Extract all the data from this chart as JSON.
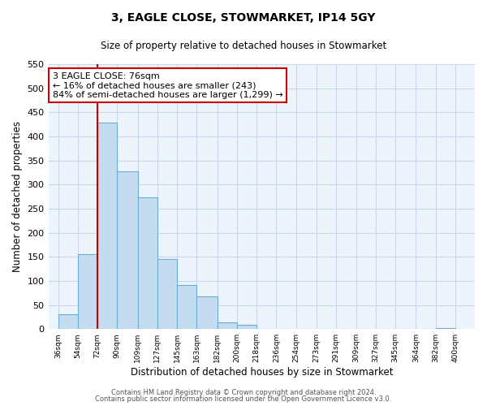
{
  "title": "3, EAGLE CLOSE, STOWMARKET, IP14 5GY",
  "subtitle": "Size of property relative to detached houses in Stowmarket",
  "xlabel": "Distribution of detached houses by size in Stowmarket",
  "ylabel": "Number of detached properties",
  "bar_left_edges": [
    36,
    54,
    72,
    90,
    109,
    127,
    145,
    163,
    182,
    200,
    218,
    236,
    254,
    273,
    291,
    309,
    327,
    345,
    364,
    382
  ],
  "bar_heights": [
    30,
    155,
    428,
    328,
    273,
    146,
    91,
    68,
    13,
    8,
    0,
    0,
    0,
    0,
    0,
    0,
    0,
    0,
    0,
    2
  ],
  "bar_widths": [
    18,
    18,
    18,
    19,
    18,
    18,
    18,
    19,
    18,
    18,
    18,
    18,
    19,
    18,
    18,
    18,
    18,
    19,
    18,
    18
  ],
  "bar_color": "#c5dcf0",
  "bar_edge_color": "#6aaed6",
  "highlight_x": 72,
  "highlight_color": "#cc0000",
  "tick_labels": [
    "36sqm",
    "54sqm",
    "72sqm",
    "90sqm",
    "109sqm",
    "127sqm",
    "145sqm",
    "163sqm",
    "182sqm",
    "200sqm",
    "218sqm",
    "236sqm",
    "254sqm",
    "273sqm",
    "291sqm",
    "309sqm",
    "327sqm",
    "345sqm",
    "364sqm",
    "382sqm",
    "400sqm"
  ],
  "tick_positions": [
    36,
    54,
    72,
    90,
    109,
    127,
    145,
    163,
    182,
    200,
    218,
    236,
    254,
    273,
    291,
    309,
    327,
    345,
    364,
    382,
    400
  ],
  "ylim": [
    0,
    550
  ],
  "xlim": [
    27,
    418
  ],
  "annotation_title": "3 EAGLE CLOSE: 76sqm",
  "annotation_line1": "← 16% of detached houses are smaller (243)",
  "annotation_line2": "84% of semi-detached houses are larger (1,299) →",
  "footer1": "Contains HM Land Registry data © Crown copyright and database right 2024.",
  "footer2": "Contains public sector information licensed under the Open Government Licence v3.0.",
  "grid_color": "#c8d8ec",
  "background_color": "#ffffff",
  "plot_bg_color": "#eef4fb"
}
